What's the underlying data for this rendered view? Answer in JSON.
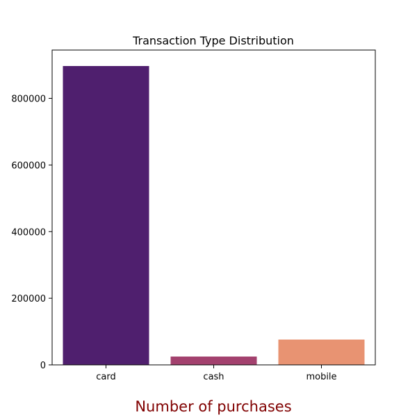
{
  "chart_data": {
    "type": "bar",
    "title": "Transaction Type Distribution",
    "xlabel": "Number of purchases",
    "ylabel": "",
    "categories": [
      "card",
      "cash",
      "mobile"
    ],
    "values": [
      897000,
      25000,
      76000
    ],
    "ylim": [
      0,
      945000
    ],
    "yticks": [
      0,
      200000,
      400000,
      600000,
      800000
    ],
    "ytick_labels": [
      "0",
      "200000",
      "400000",
      "600000",
      "800000"
    ],
    "grid": false,
    "legend": "none"
  },
  "colors": {
    "bars": [
      "#4f1f6e",
      "#a3416e",
      "#e89372"
    ],
    "xlabel": "#800000",
    "axes": "#000000"
  }
}
